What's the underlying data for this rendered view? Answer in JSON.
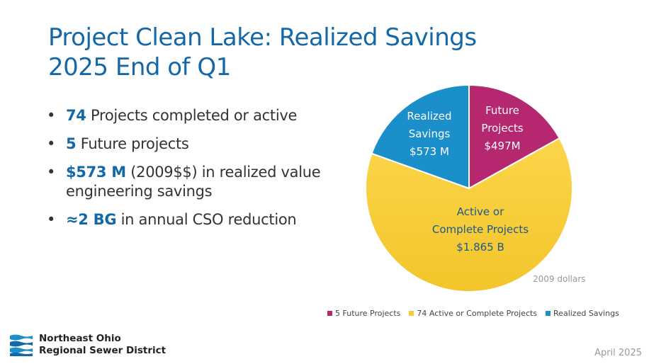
{
  "title": {
    "line1": "Project Clean Lake: Realized Savings",
    "line2": "2025 End of Q1"
  },
  "bullets": [
    {
      "bold": "74",
      "text": " Projects completed or active"
    },
    {
      "bold": "5",
      "text": " Future projects"
    },
    {
      "bold": "$573 M",
      "text": " (2009$$) in realized value engineering savings"
    },
    {
      "bold": "≈2 BG",
      "text": " in annual CSO reduction"
    }
  ],
  "chart_data": {
    "type": "pie",
    "slices": [
      {
        "legend": "5 Future Projects",
        "label": [
          "Future",
          "Projects",
          "$497M"
        ],
        "value": 497,
        "color": "#b5286f"
      },
      {
        "legend": "74 Active or Complete Projects",
        "label": [
          "Active or",
          "Complete Projects",
          "$1.865 B"
        ],
        "value": 1865,
        "color": "#f7cc3a"
      },
      {
        "legend": "Realized Savings",
        "label": [
          "Realized",
          "Savings",
          "$573 M"
        ],
        "value": 573,
        "color": "#1a8fc9"
      }
    ],
    "legend_position": "bottom",
    "note": "2009 dollars"
  },
  "footer": {
    "org_line1": "Northeast Ohio",
    "org_line2": "Regional Sewer District",
    "date": "April 2025"
  }
}
